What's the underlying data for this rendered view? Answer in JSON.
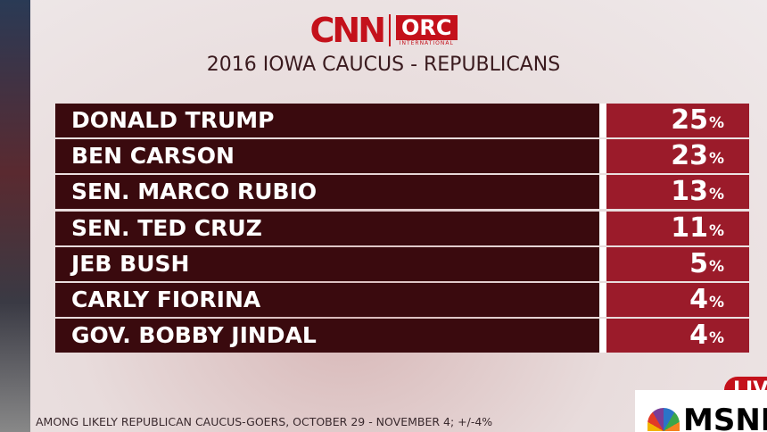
{
  "header": {
    "logo": "CNN",
    "partner": "ORC",
    "partner_sub": "INTERNATIONAL",
    "title": "2016 IOWA CAUCUS - REPUBLICANS"
  },
  "table": {
    "rows": [
      {
        "name": "DONALD TRUMP",
        "value": "25",
        "unit": "%"
      },
      {
        "name": "BEN CARSON",
        "value": "23",
        "unit": "%"
      },
      {
        "name": "SEN. MARCO RUBIO",
        "value": "13",
        "unit": "%"
      },
      {
        "name": "SEN. TED CRUZ",
        "value": "11",
        "unit": "%"
      },
      {
        "name": "JEB BUSH",
        "value": "5",
        "unit": "%"
      },
      {
        "name": "CARLY FIORINA",
        "value": "4",
        "unit": "%"
      },
      {
        "name": "GOV. BOBBY JINDAL",
        "value": "4",
        "unit": "%"
      }
    ]
  },
  "footer": {
    "note": "AMONG LIKELY REPUBLICAN CAUCUS-GOERS, OCTOBER 29 - NOVEMBER 4; +/-4%"
  },
  "overlay": {
    "live": "LIVE",
    "network": "MSNBC"
  }
}
